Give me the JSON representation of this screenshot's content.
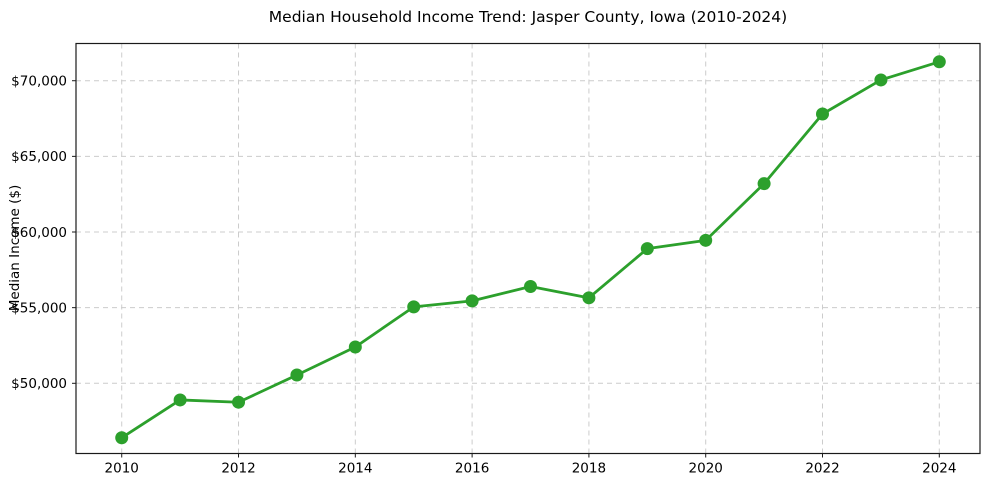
{
  "chart_data": {
    "type": "line",
    "title": "Median Household Income Trend: Jasper County, Iowa (2010-2024)",
    "xlabel": "",
    "ylabel": "Median Income ($)",
    "x": [
      2010,
      2011,
      2012,
      2013,
      2014,
      2015,
      2016,
      2017,
      2018,
      2019,
      2020,
      2021,
      2022,
      2023,
      2024
    ],
    "values": [
      46400,
      48900,
      48750,
      50550,
      52400,
      55050,
      55450,
      56400,
      55650,
      58900,
      59450,
      63200,
      67800,
      70050,
      71250
    ],
    "xticks": [
      {
        "value": 2010,
        "label": "2010"
      },
      {
        "value": 2012,
        "label": "2012"
      },
      {
        "value": 2014,
        "label": "2014"
      },
      {
        "value": 2016,
        "label": "2016"
      },
      {
        "value": 2018,
        "label": "2018"
      },
      {
        "value": 2020,
        "label": "2020"
      },
      {
        "value": 2022,
        "label": "2022"
      },
      {
        "value": 2024,
        "label": "2024"
      }
    ],
    "yticks": [
      {
        "value": 50000,
        "label": "$50,000"
      },
      {
        "value": 55000,
        "label": "$55,000"
      },
      {
        "value": 60000,
        "label": "$60,000"
      },
      {
        "value": 65000,
        "label": "$65,000"
      },
      {
        "value": 70000,
        "label": "$70,000"
      }
    ],
    "xlim": [
      2009.217,
      2024.697
    ],
    "ylim": [
      45360,
      72460
    ],
    "grid": true,
    "legend": "none",
    "colors": {
      "line": "#2ca02c",
      "marker": "#2ca02c",
      "grid": "#cccccc",
      "spine": "#1a1a1a",
      "background": "#ffffff",
      "text": "#000000"
    }
  }
}
